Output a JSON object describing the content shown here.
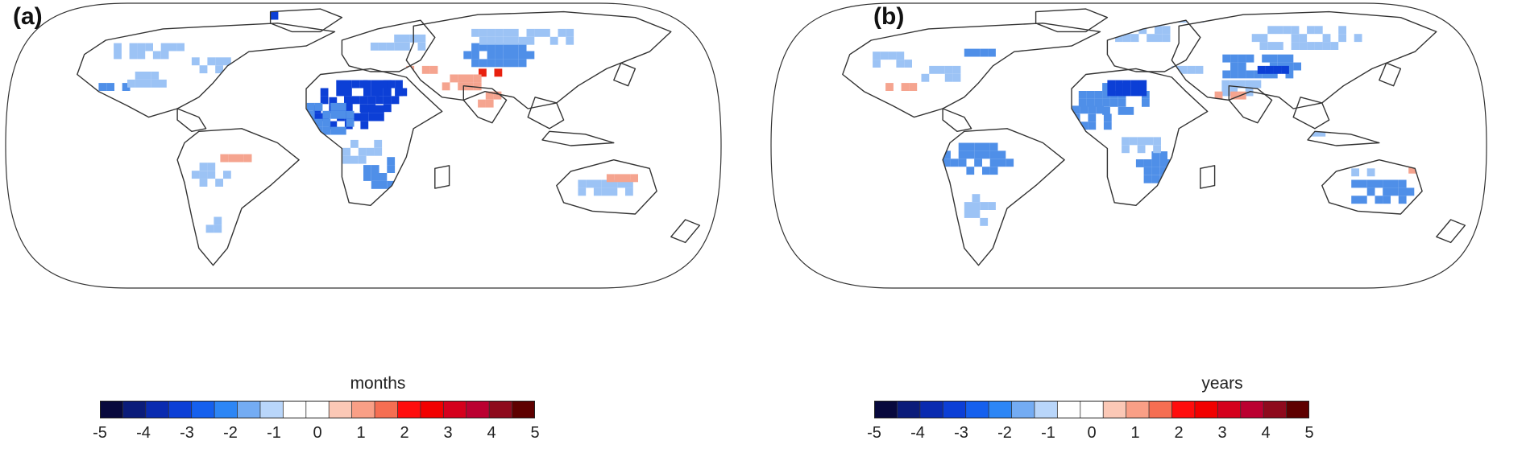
{
  "panels": [
    {
      "label": "(a)",
      "colorbar_title": "months"
    },
    {
      "label": "(b)",
      "colorbar_title": "years"
    }
  ],
  "colorbar": {
    "ticks": [
      "-5",
      "-4",
      "-3",
      "-2",
      "-1",
      "0",
      "1",
      "2",
      "3",
      "4",
      "5"
    ],
    "colors": [
      "#08093d",
      "#0b1c7a",
      "#0a2bb0",
      "#0c3fd6",
      "#1560ee",
      "#2d86f5",
      "#74acf3",
      "#b9d6fa",
      "#ffffff",
      "#ffffff",
      "#fbc8b6",
      "#f99f86",
      "#f56e52",
      "#ff0d0d",
      "#f20000",
      "#d5001d",
      "#bb0031",
      "#8e0a1d",
      "#5e0000"
    ]
  },
  "colors": {
    "land_outline": "#333333",
    "map_border": "#333333",
    "blue_strong": "#0c3fd6",
    "blue_mid": "#4f8fe8",
    "blue_light": "#9cc3f5",
    "red_light": "#f5a48f",
    "red_strong": "#e8200e"
  }
}
